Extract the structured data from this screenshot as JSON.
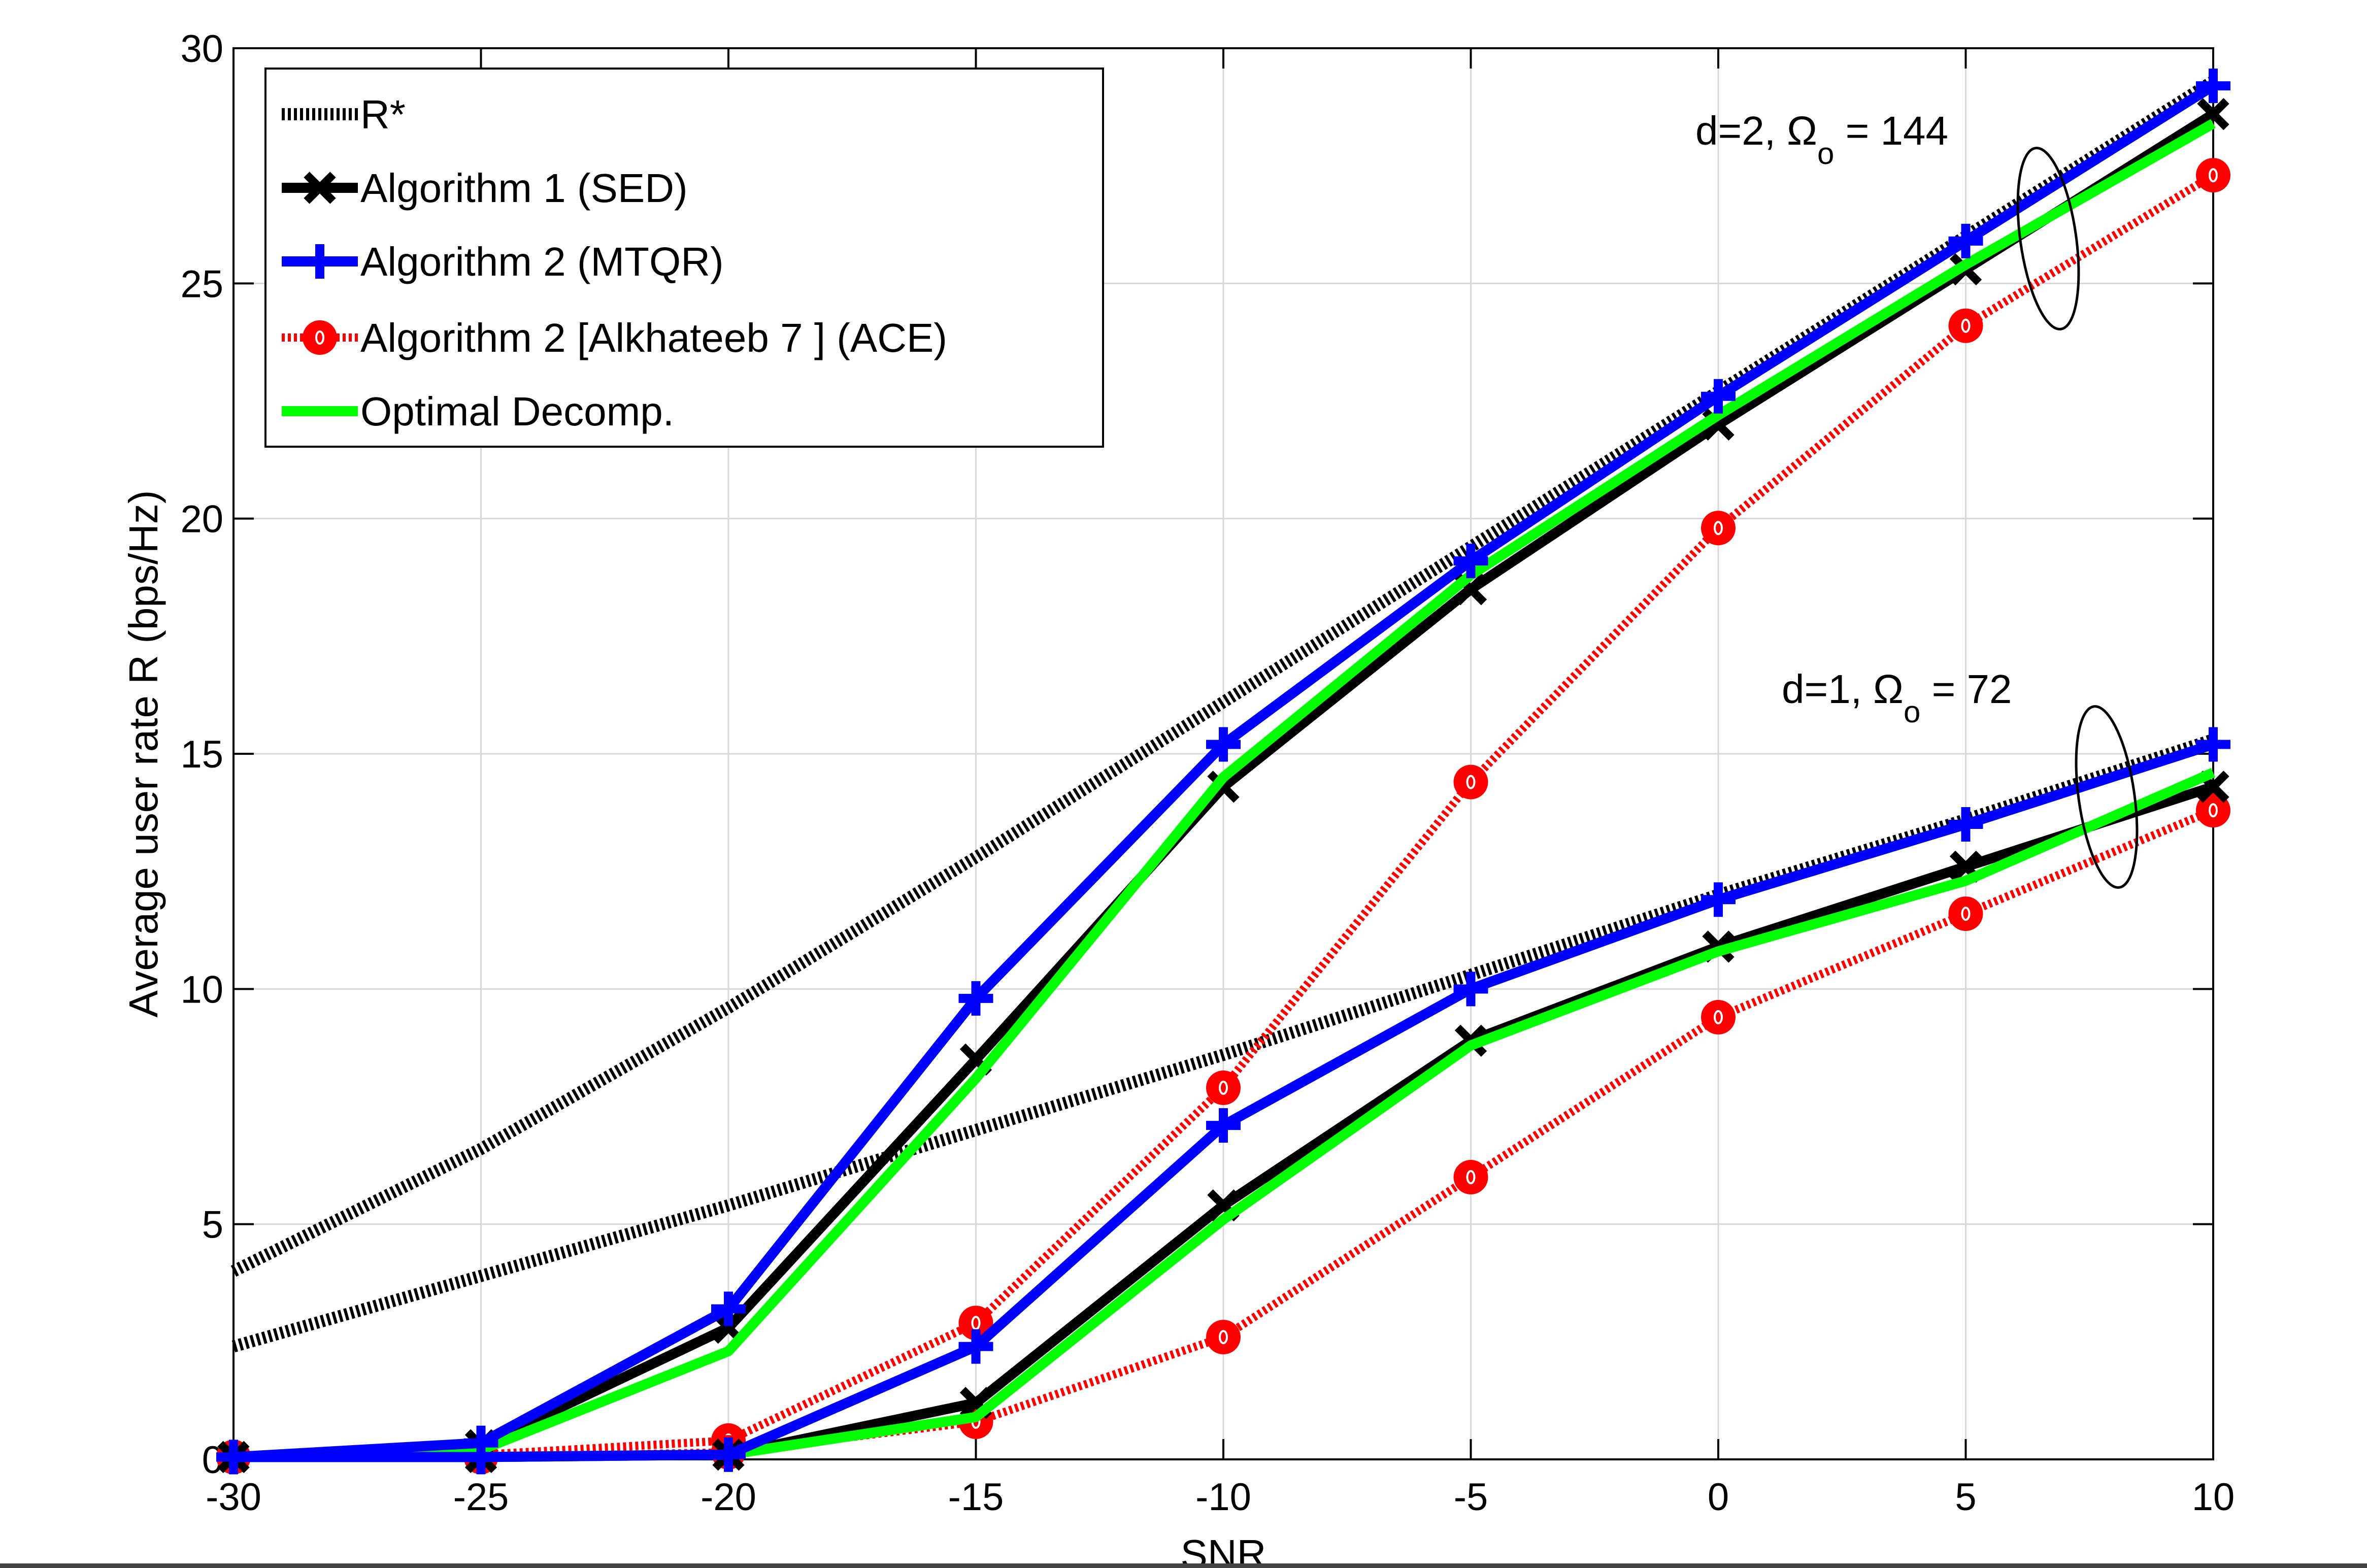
{
  "chart_data": {
    "type": "line",
    "title": "",
    "xlabel": "SNR",
    "ylabel": "Average user rate R (bps/Hz)",
    "xlim": [
      -30,
      10
    ],
    "ylim": [
      0,
      30
    ],
    "xticks": [
      "-30",
      "-25",
      "-20",
      "-15",
      "-10",
      "-5",
      "0",
      "5",
      "10"
    ],
    "yticks": [
      "0",
      "5",
      "10",
      "15",
      "20",
      "25",
      "30"
    ],
    "xtick_values": [
      -30,
      -25,
      -20,
      -15,
      -10,
      -5,
      0,
      5,
      10
    ],
    "ytick_values": [
      0,
      5,
      10,
      15,
      20,
      25,
      30
    ],
    "grid": true,
    "legend_position": "top-left",
    "x": [
      -30,
      -25,
      -20,
      -15,
      -10,
      -5,
      0,
      5,
      10
    ],
    "series": [
      {
        "name": "R*",
        "group": "d=2",
        "style": "rstar",
        "color": "#000000",
        "values": [
          4.0,
          6.6,
          9.6,
          12.8,
          16.1,
          19.4,
          22.7,
          26.0,
          29.3
        ]
      },
      {
        "name": "Algorithm  1 (SED)",
        "group": "d=2",
        "style": "sed",
        "color": "#000000",
        "values": [
          0.05,
          0.3,
          2.8,
          8.5,
          14.3,
          18.5,
          22.0,
          25.3,
          28.6
        ]
      },
      {
        "name": "Algorithm 2 (MTQR)",
        "group": "d=2",
        "style": "mtqr",
        "color": "#0000ff",
        "values": [
          0.05,
          0.35,
          3.2,
          9.8,
          15.2,
          19.1,
          22.6,
          25.9,
          29.2
        ]
      },
      {
        "name": "Algorithm 2 [Alkhateeb  7 ] (ACE)",
        "group": "d=2",
        "style": "ace",
        "color": "#ff0000",
        "values": [
          0.05,
          0.1,
          0.4,
          2.9,
          7.9,
          14.4,
          19.8,
          24.1,
          27.3
        ]
      },
      {
        "name": "Optimal Decomp.",
        "group": "d=2",
        "style": "opt",
        "color": "#00ff00",
        "values": [
          0.05,
          0.2,
          2.3,
          8.1,
          14.5,
          18.8,
          22.2,
          25.4,
          28.4
        ]
      },
      {
        "name": "R*",
        "group": "d=1",
        "style": "rstar",
        "color": "#000000",
        "values": [
          2.4,
          3.9,
          5.4,
          7.0,
          8.6,
          10.3,
          12.0,
          13.6,
          15.3
        ]
      },
      {
        "name": "Algorithm  1 (SED)",
        "group": "d=1",
        "style": "sed",
        "color": "#000000",
        "values": [
          0.05,
          0.05,
          0.1,
          1.2,
          5.4,
          8.9,
          10.9,
          12.6,
          14.3
        ]
      },
      {
        "name": "Algorithm 2 (MTQR)",
        "group": "d=1",
        "style": "mtqr",
        "color": "#0000ff",
        "values": [
          0.05,
          0.05,
          0.1,
          2.4,
          7.1,
          10.0,
          11.9,
          13.5,
          15.2
        ]
      },
      {
        "name": "Algorithm 2 [Alkhateeb  7 ] (ACE)",
        "group": "d=1",
        "style": "ace",
        "color": "#ff0000",
        "values": [
          0.05,
          0.05,
          0.15,
          0.8,
          2.6,
          6.0,
          9.4,
          11.6,
          13.8
        ]
      },
      {
        "name": "Optimal Decomp.",
        "group": "d=1",
        "style": "opt",
        "color": "#00ff00",
        "values": [
          0.05,
          0.05,
          0.1,
          0.9,
          5.1,
          8.8,
          10.8,
          12.3,
          14.6
        ]
      }
    ],
    "annotations": [
      {
        "prefix": "d=2,  ",
        "symbol": "Ω",
        "subscript": "o",
        "suffix": " = 144",
        "at_x": 8.0,
        "at_y": 27.0
      },
      {
        "prefix": "d=1,  ",
        "symbol": "Ω",
        "subscript": "o",
        "suffix": " = 72",
        "at_x": 7.8,
        "at_y": 13.7
      }
    ],
    "legend": [
      {
        "label": "R*",
        "style": "rstar"
      },
      {
        "label": "Algorithm  1 (SED)",
        "style": "sed"
      },
      {
        "label": "Algorithm 2 (MTQR)",
        "style": "mtqr"
      },
      {
        "label": "Algorithm 2 [Alkhateeb  7 ] (ACE)",
        "style": "ace"
      },
      {
        "label": "Optimal Decomp.",
        "style": "opt"
      }
    ]
  }
}
